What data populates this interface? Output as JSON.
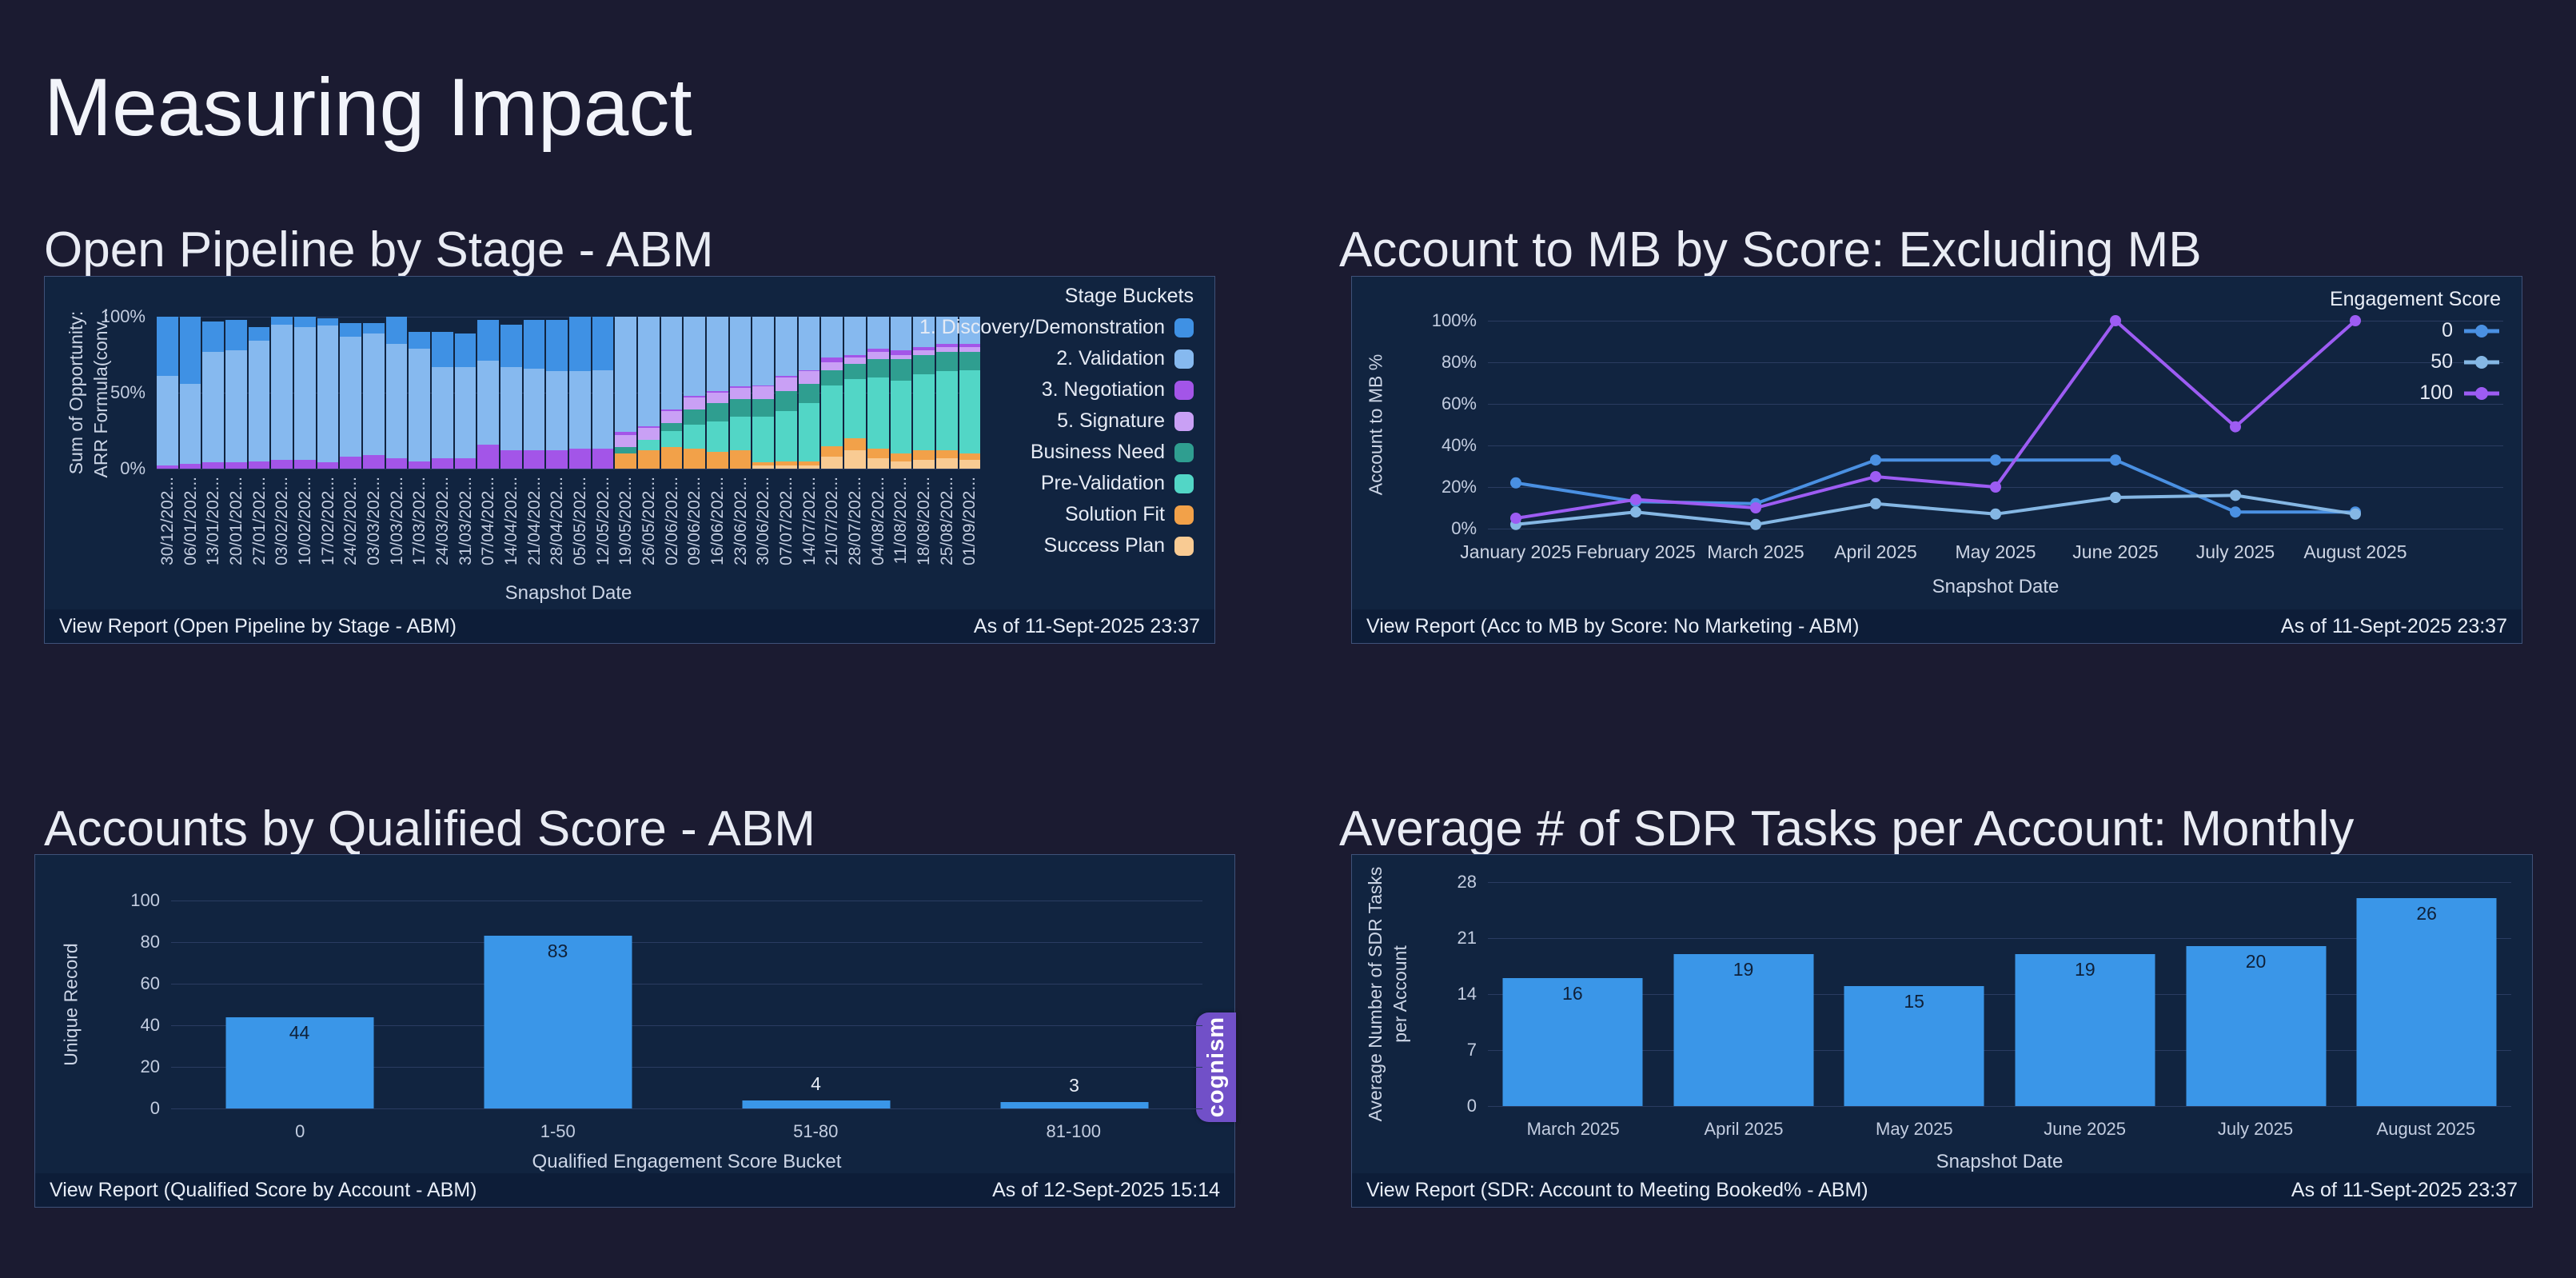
{
  "page": {
    "title": "Measuring Impact"
  },
  "colors": {
    "page_background": "#1b1b31",
    "panel_background": "#112440",
    "footer_background": "#0d1d38",
    "gridline": "#2a3c61",
    "bar_blue": "#3a96e8",
    "badge_purple": "#7150c8",
    "text_light": "#e9ecf4"
  },
  "panels": [
    {
      "key": "open-pipeline",
      "title": "Open Pipeline by Stage - ABM",
      "footer": {
        "view_report": "View Report (Open Pipeline by Stage - ABM)",
        "as_of": "As of 11-Sept-2025 23:37"
      }
    },
    {
      "key": "account-to-mb",
      "title": "Account to MB by Score: Excluding MB",
      "footer": {
        "view_report": "View Report (Acc to MB by Score: No Marketing - ABM)",
        "as_of": "As of 11-Sept-2025 23:37"
      }
    },
    {
      "key": "qualified-score",
      "title": "Accounts by Qualified Score - ABM",
      "badge": "cognism",
      "footer": {
        "view_report": "View Report (Qualified Score by Account - ABM)",
        "as_of": "As of 12-Sept-2025 15:14"
      }
    },
    {
      "key": "sdr-tasks",
      "title": "Average # of SDR Tasks per Account: Monthly",
      "footer": {
        "view_report": "View Report (SDR: Account to Meeting Booked% - ABM)",
        "as_of": "As of 11-Sept-2025 23:37"
      }
    }
  ],
  "chart_data": [
    {
      "type": "bar",
      "subtype": "stacked-percent",
      "title": "Open Pipeline by Stage - ABM",
      "xlabel": "Snapshot Date",
      "ylabel_lines": [
        "Sum of Opportunity:",
        "ARR Formula(conv..."
      ],
      "yticks": [
        "100%",
        "50%",
        "0%"
      ],
      "ylim": [
        0,
        100
      ],
      "grid": true,
      "legend_title": "Stage Buckets",
      "legend_position": "right",
      "legend_order": [
        "discovery",
        "validation",
        "negotiation",
        "signature",
        "business_need",
        "pre_validation",
        "solution_fit",
        "success_plan"
      ],
      "series_meta": {
        "discovery": {
          "label": "1. Discovery/Demonstration",
          "color": "#3f91e4"
        },
        "validation": {
          "label": "2. Validation",
          "color": "#86b9ef"
        },
        "negotiation": {
          "label": "3. Negotiation",
          "color": "#a355e8"
        },
        "signature": {
          "label": "5. Signature",
          "color": "#c9a0f5"
        },
        "business_need": {
          "label": "Business Need",
          "color": "#2f9e90"
        },
        "pre_validation": {
          "label": "Pre-Validation",
          "color": "#52d6c6"
        },
        "solution_fit": {
          "label": "Solution Fit",
          "color": "#f2a149"
        },
        "success_plan": {
          "label": "Success Plan",
          "color": "#f9cb93"
        }
      },
      "stack_order_bottom_to_top": [
        "success_plan",
        "solution_fit",
        "pre_validation",
        "business_need",
        "signature",
        "negotiation",
        "validation",
        "discovery"
      ],
      "categories": [
        "30/12/202...",
        "06/01/202...",
        "13/01/202...",
        "20/01/202...",
        "27/01/202...",
        "03/02/202...",
        "10/02/202...",
        "17/02/202...",
        "24/02/202...",
        "03/03/202...",
        "10/03/202...",
        "17/03/202...",
        "24/03/202...",
        "31/03/202...",
        "07/04/202...",
        "14/04/202...",
        "21/04/202...",
        "28/04/202...",
        "05/05/202...",
        "12/05/202...",
        "19/05/202...",
        "26/05/202...",
        "02/06/202...",
        "09/06/202...",
        "16/06/202...",
        "23/06/202...",
        "30/06/202...",
        "07/07/202...",
        "14/07/202...",
        "21/07/202...",
        "28/07/202...",
        "04/08/202...",
        "11/08/202...",
        "18/08/202...",
        "25/08/202...",
        "01/09/202..."
      ],
      "values": {
        "success_plan": [
          0,
          0,
          0,
          0,
          0,
          0,
          0,
          0,
          0,
          0,
          0,
          0,
          0,
          0,
          0,
          0,
          0,
          0,
          0,
          0,
          0,
          0,
          0,
          0,
          0,
          0,
          2,
          2,
          2,
          8,
          12,
          7,
          5,
          6,
          7,
          6
        ],
        "solution_fit": [
          0,
          0,
          0,
          0,
          0,
          0,
          0,
          0,
          0,
          0,
          0,
          0,
          0,
          0,
          0,
          0,
          0,
          0,
          0,
          0,
          10,
          12,
          14,
          13,
          11,
          12,
          2,
          3,
          3,
          7,
          8,
          6,
          5,
          6,
          5,
          4
        ],
        "pre_validation": [
          0,
          0,
          0,
          0,
          0,
          0,
          0,
          0,
          0,
          0,
          0,
          0,
          0,
          0,
          0,
          0,
          0,
          0,
          0,
          0,
          0,
          7,
          11,
          16,
          20,
          22,
          30,
          33,
          38,
          40,
          39,
          47,
          48,
          50,
          52,
          55
        ],
        "business_need": [
          0,
          0,
          0,
          0,
          0,
          0,
          0,
          0,
          0,
          0,
          0,
          0,
          0,
          0,
          0,
          0,
          0,
          0,
          0,
          0,
          4,
          0,
          5,
          10,
          12,
          12,
          12,
          13,
          13,
          10,
          10,
          12,
          14,
          13,
          13,
          12
        ],
        "signature": [
          0,
          0,
          0,
          0,
          0,
          0,
          0,
          0,
          0,
          0,
          0,
          0,
          0,
          0,
          0,
          0,
          0,
          0,
          0,
          0,
          8,
          8,
          8,
          8,
          7,
          7,
          8,
          9,
          8,
          5,
          4,
          5,
          3,
          3,
          3,
          3
        ],
        "negotiation": [
          2,
          3,
          4,
          4,
          5,
          6,
          6,
          4,
          8,
          9,
          7,
          5,
          7,
          7,
          16,
          12,
          12,
          12,
          13,
          13,
          2,
          1,
          1,
          1,
          1,
          1,
          1,
          1,
          1,
          3,
          2,
          2,
          3,
          2,
          2,
          2
        ],
        "validation": [
          59,
          53,
          73,
          74,
          79,
          89,
          87,
          90,
          79,
          80,
          75,
          74,
          60,
          60,
          55,
          55,
          54,
          52,
          51,
          52,
          76,
          72,
          61,
          52,
          49,
          46,
          45,
          39,
          35,
          27,
          25,
          21,
          22,
          20,
          18,
          18
        ],
        "discovery": [
          39,
          44,
          20,
          20,
          9,
          5,
          7,
          5,
          9,
          7,
          18,
          11,
          23,
          22,
          27,
          28,
          32,
          34,
          36,
          35,
          0,
          0,
          0,
          0,
          0,
          0,
          0,
          0,
          0,
          0,
          0,
          0,
          0,
          0,
          0,
          0
        ]
      }
    },
    {
      "type": "line",
      "title": "Account to MB by Score: Excluding MB",
      "xlabel": "Snapshot Date",
      "ylabel": "Account to MB %",
      "yticks": [
        "100%",
        "80%",
        "60%",
        "40%",
        "20%",
        "0%"
      ],
      "ylim": [
        0,
        100
      ],
      "grid": true,
      "legend_title": "Engagement Score",
      "legend_position": "right",
      "categories": [
        "January 2025",
        "February 2025",
        "March 2025",
        "April 2025",
        "May 2025",
        "June 2025",
        "July 2025",
        "August 2025"
      ],
      "series": [
        {
          "name": "0",
          "color": "#4a90e2",
          "values": [
            22,
            13,
            12,
            33,
            33,
            33,
            8,
            8
          ]
        },
        {
          "name": "50",
          "color": "#85b7e4",
          "values": [
            2,
            8,
            2,
            12,
            7,
            15,
            16,
            7
          ]
        },
        {
          "name": "100",
          "color": "#9d5cf3",
          "values": [
            5,
            14,
            10,
            25,
            20,
            100,
            49,
            100
          ]
        }
      ]
    },
    {
      "type": "bar",
      "title": "Accounts by Qualified Score - ABM",
      "xlabel": "Qualified Engagement Score Bucket",
      "ylabel": "Unique Record",
      "yticks": [
        "100",
        "80",
        "60",
        "40",
        "20",
        "0"
      ],
      "ylim": [
        0,
        100
      ],
      "grid": true,
      "bar_color": "#3a96e8",
      "categories": [
        "0",
        "1-50",
        "51-80",
        "81-100"
      ],
      "values": [
        44,
        83,
        4,
        3
      ]
    },
    {
      "type": "bar",
      "title": "Average # of SDR Tasks per Account: Monthly",
      "xlabel": "Snapshot Date",
      "ylabel_lines": [
        "Average Number of SDR Tasks",
        "per Account"
      ],
      "yticks": [
        "28",
        "21",
        "14",
        "7",
        "0"
      ],
      "ylim": [
        0,
        28
      ],
      "grid": true,
      "bar_color": "#3a96e8",
      "categories": [
        "March 2025",
        "April 2025",
        "May 2025",
        "June 2025",
        "July 2025",
        "August 2025"
      ],
      "values": [
        16,
        19,
        15,
        19,
        20,
        26
      ]
    }
  ]
}
